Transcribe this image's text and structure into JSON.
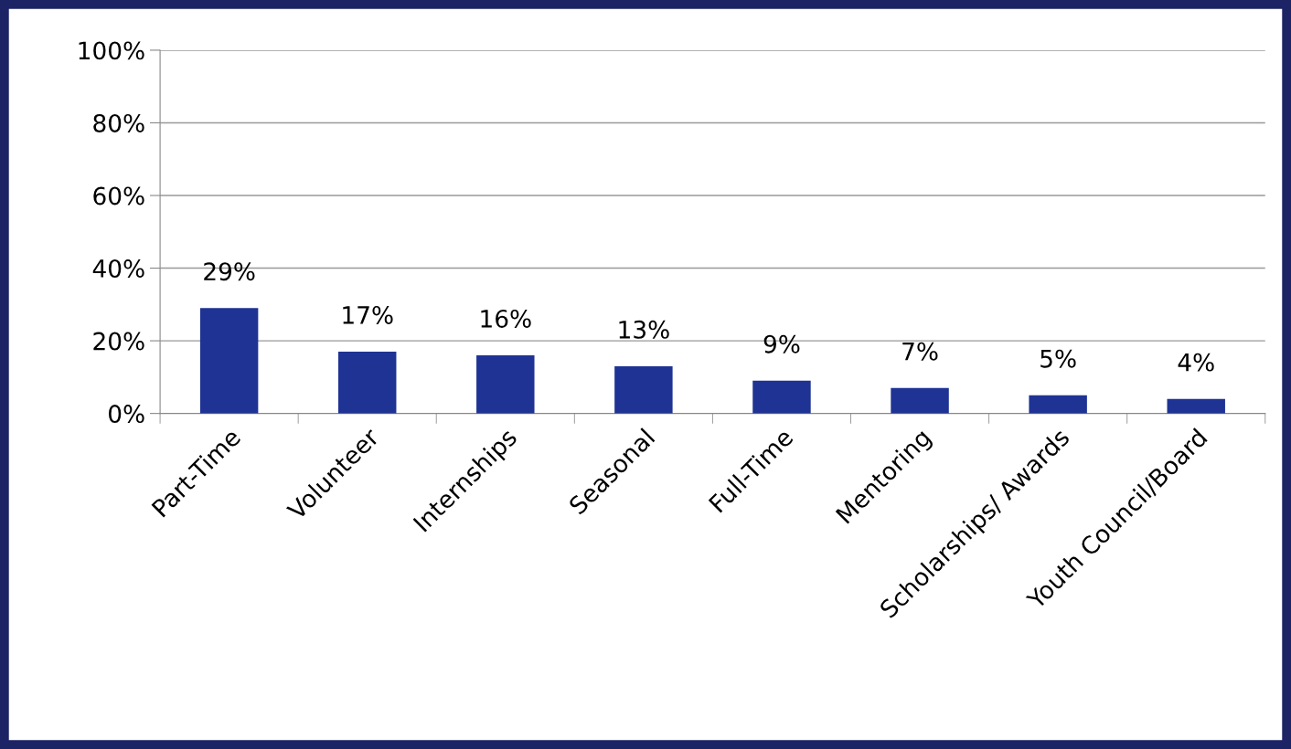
{
  "chart_data": {
    "type": "bar",
    "categories": [
      "Part-Time",
      "Volunteer",
      "Internships",
      "Seasonal",
      "Full-Time",
      "Mentoring",
      "Scholarships/ Awards",
      "Youth Council/Board"
    ],
    "values": [
      29,
      17,
      16,
      13,
      9,
      7,
      5,
      4
    ],
    "value_labels": [
      "29%",
      "17%",
      "16%",
      "13%",
      "9%",
      "7%",
      "5%",
      "4%"
    ],
    "color": "#1f3394",
    "ylim": [
      0,
      100
    ],
    "yticks": [
      {
        "value": 0,
        "label": "0%"
      },
      {
        "value": 20,
        "label": "20%"
      },
      {
        "value": 40,
        "label": "40%"
      },
      {
        "value": 60,
        "label": "60%"
      },
      {
        "value": 80,
        "label": "80%"
      },
      {
        "value": 100,
        "label": "100%"
      }
    ],
    "grid": "y",
    "legend": false
  }
}
